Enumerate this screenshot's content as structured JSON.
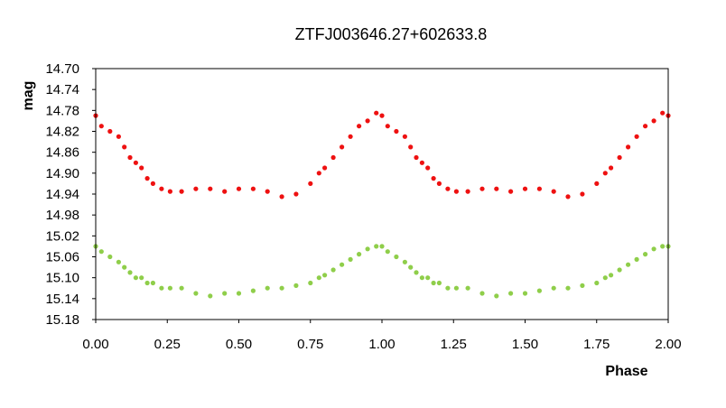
{
  "chart_data": {
    "type": "scatter",
    "title": "ZTFJ003646.27+602633.8",
    "xlabel": "Phase",
    "ylabel": "mag",
    "xlim": [
      0,
      2
    ],
    "ylim": [
      14.7,
      15.18
    ],
    "y_inverted": true,
    "grid": false,
    "legend": "none",
    "x_ticks": [
      "0.00",
      "0.25",
      "0.50",
      "0.75",
      "1.00",
      "1.25",
      "1.50",
      "1.75",
      "2.00"
    ],
    "y_ticks": [
      "14.70",
      "14.74",
      "14.78",
      "14.82",
      "14.86",
      "14.90",
      "14.94",
      "14.98",
      "15.02",
      "15.06",
      "15.10",
      "15.14",
      "15.18"
    ],
    "series": [
      {
        "color": "#ee1111",
        "x": [
          0.0,
          0.02,
          0.05,
          0.08,
          0.1,
          0.12,
          0.14,
          0.16,
          0.18,
          0.2,
          0.23,
          0.26,
          0.3,
          0.35,
          0.4,
          0.45,
          0.5,
          0.55,
          0.6,
          0.65,
          0.7,
          0.75,
          0.78,
          0.8,
          0.83,
          0.86,
          0.89,
          0.92,
          0.95,
          0.98,
          1.0,
          1.02,
          1.05,
          1.08,
          1.1,
          1.12,
          1.14,
          1.16,
          1.18,
          1.2,
          1.23,
          1.26,
          1.3,
          1.35,
          1.4,
          1.45,
          1.5,
          1.55,
          1.6,
          1.65,
          1.7,
          1.75,
          1.78,
          1.8,
          1.83,
          1.86,
          1.89,
          1.92,
          1.95,
          1.98,
          2.0
        ],
        "y": [
          14.79,
          14.81,
          14.82,
          14.83,
          14.85,
          14.87,
          14.88,
          14.89,
          14.91,
          14.92,
          14.93,
          14.935,
          14.935,
          14.93,
          14.93,
          14.935,
          14.93,
          14.93,
          14.935,
          14.945,
          14.94,
          14.92,
          14.9,
          14.89,
          14.87,
          14.85,
          14.83,
          14.81,
          14.8,
          14.785,
          14.79,
          14.81,
          14.82,
          14.83,
          14.85,
          14.87,
          14.88,
          14.89,
          14.91,
          14.92,
          14.93,
          14.935,
          14.935,
          14.93,
          14.93,
          14.935,
          14.93,
          14.93,
          14.935,
          14.945,
          14.94,
          14.92,
          14.9,
          14.89,
          14.87,
          14.85,
          14.83,
          14.81,
          14.8,
          14.785,
          14.79
        ]
      },
      {
        "color": "#8fce4a",
        "x": [
          0.0,
          0.02,
          0.05,
          0.08,
          0.1,
          0.12,
          0.14,
          0.16,
          0.18,
          0.2,
          0.23,
          0.26,
          0.3,
          0.35,
          0.4,
          0.45,
          0.5,
          0.55,
          0.6,
          0.65,
          0.7,
          0.75,
          0.78,
          0.8,
          0.83,
          0.86,
          0.89,
          0.92,
          0.95,
          0.98,
          1.0,
          1.02,
          1.05,
          1.08,
          1.1,
          1.12,
          1.14,
          1.16,
          1.18,
          1.2,
          1.23,
          1.26,
          1.3,
          1.35,
          1.4,
          1.45,
          1.5,
          1.55,
          1.6,
          1.65,
          1.7,
          1.75,
          1.78,
          1.8,
          1.83,
          1.86,
          1.89,
          1.92,
          1.95,
          1.98,
          2.0
        ],
        "y": [
          15.04,
          15.05,
          15.06,
          15.07,
          15.08,
          15.09,
          15.1,
          15.1,
          15.11,
          15.11,
          15.12,
          15.12,
          15.12,
          15.13,
          15.135,
          15.13,
          15.13,
          15.125,
          15.12,
          15.12,
          15.115,
          15.11,
          15.1,
          15.095,
          15.085,
          15.075,
          15.065,
          15.055,
          15.045,
          15.04,
          15.04,
          15.05,
          15.06,
          15.07,
          15.08,
          15.09,
          15.1,
          15.1,
          15.11,
          15.11,
          15.12,
          15.12,
          15.12,
          15.13,
          15.135,
          15.13,
          15.13,
          15.125,
          15.12,
          15.12,
          15.115,
          15.11,
          15.1,
          15.095,
          15.085,
          15.075,
          15.065,
          15.055,
          15.045,
          15.04,
          15.04
        ]
      }
    ]
  }
}
